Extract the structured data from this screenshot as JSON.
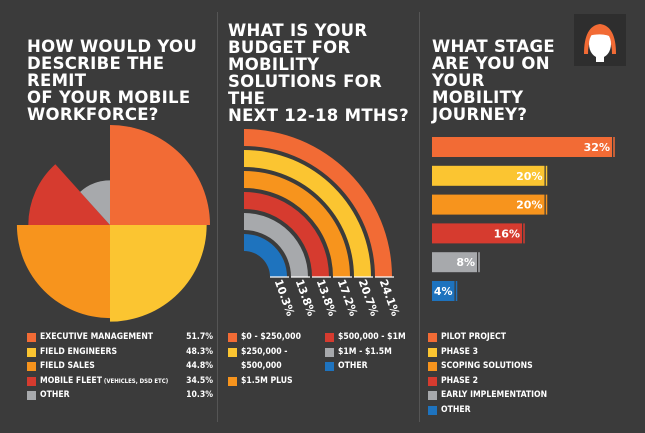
{
  "chart_data": [
    {
      "type": "pie",
      "title": "HOW WOULD YOU DESCRIBE THE REMIT OF YOUR MOBILE WORKFORCE?",
      "title_lines": [
        "HOW WOULD YOU",
        "DESCRIBE THE REMIT",
        "OF YOUR MOBILE",
        "WORKFORCE?"
      ],
      "slices": [
        {
          "label": "EXECUTIVE MANAGEMENT",
          "value": "51.7%",
          "color": "#f26b35"
        },
        {
          "label": "FIELD ENGINEERS",
          "value": "48.3%",
          "color": "#fbc531"
        },
        {
          "label": "FIELD SALES",
          "value": "44.8%",
          "color": "#f7941d"
        },
        {
          "label": "MOBILE FLEET",
          "label_note": "(VEHICLES, DSD ETC)",
          "value": "34.5%",
          "color": "#d63b2f"
        },
        {
          "label": "OTHER",
          "value": "10.3%",
          "color": "#a7a9ac"
        }
      ],
      "values": [
        51.7,
        48.3,
        44.8,
        34.5,
        10.3
      ]
    },
    {
      "type": "bar",
      "style": "radial",
      "title": "WHAT IS YOUR BUDGET FOR MOBILITY SOLUTIONS FOR THE NEXT 12-18 MTHS?",
      "title_lines": [
        "WHAT IS YOUR",
        "BUDGET FOR",
        "MOBILITY",
        "SOLUTIONS FOR THE",
        "NEXT 12-18 MTHS?"
      ],
      "categories": [
        "$0 - $250,000",
        "$250,000 - $500,000",
        "$1.5M PLUS",
        "$500,000 - $1M",
        "$1M - $1.5M",
        "OTHER"
      ],
      "values": [
        24.1,
        20.7,
        17.2,
        13.8,
        13.8,
        10.3
      ],
      "labels": [
        "24.1%",
        "20.7%",
        "17.2%",
        "13.8%",
        "13.8%",
        "10.3%"
      ],
      "colors": [
        "#f26b35",
        "#fbc531",
        "#f7941d",
        "#d63b2f",
        "#a7a9ac",
        "#1e73be"
      ],
      "legend_left": [
        {
          "lines": [
            "$0 - $250,000"
          ],
          "color": "#f26b35"
        },
        {
          "lines": [
            "$250,000 -",
            "$500,000"
          ],
          "color": "#fbc531"
        },
        {
          "lines": [
            "$1.5M PLUS"
          ],
          "color": "#f7941d"
        }
      ],
      "legend_right": [
        {
          "lines": [
            "$500,000 - $1M"
          ],
          "color": "#d63b2f"
        },
        {
          "lines": [
            "$1M - $1.5M"
          ],
          "color": "#a7a9ac"
        },
        {
          "lines": [
            "OTHER"
          ],
          "color": "#1e73be"
        }
      ]
    },
    {
      "type": "bar",
      "orientation": "horizontal",
      "title": "WHAT STAGE ARE YOU ON YOUR MOBILITY JOURNEY?",
      "title_lines": [
        "WHAT STAGE",
        "ARE YOU ON",
        "YOUR MOBILITY",
        "JOURNEY?"
      ],
      "categories": [
        "PILOT PROJECT",
        "PHASE 3",
        "SCOPING SOLUTIONS",
        "PHASE 2",
        "EARLY IMPLEMENTATION",
        "OTHER"
      ],
      "values": [
        32,
        20,
        20,
        16,
        8,
        4
      ],
      "labels": [
        "32%",
        "20%",
        "20%",
        "16%",
        "8%",
        "4%"
      ],
      "colors": [
        "#f26b35",
        "#fbc531",
        "#f7941d",
        "#d63b2f",
        "#a7a9ac",
        "#1e73be"
      ]
    }
  ],
  "avatar": {
    "icon": "person-avatar-icon",
    "hair_color": "#f26b35"
  }
}
